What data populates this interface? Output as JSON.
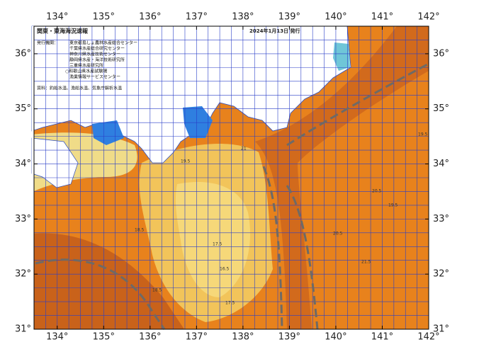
{
  "map": {
    "title": "関東・東海海況速報",
    "issued": "2024年1月13日 発行",
    "issuer_label": "発行機関：",
    "issuers": [
      "東京都島しょ農林水産総合センター",
      "千葉県水産総合研究センター",
      "神奈川県水産技術センター",
      "静岡県水産・海洋技術研究所",
      "三重県水産研究所",
      "○和歌山県水産試験場",
      "漁業情報サービスセンター"
    ],
    "source": "資料：釣船水温、漁船水温、気象庁解析水温",
    "lon_range": [
      133.5,
      142
    ],
    "lat_range": [
      31,
      36.5
    ],
    "grid_step": 0.25,
    "lon_ticks": [
      {
        "value": 134,
        "label": "134°"
      },
      {
        "value": 135,
        "label": "135°"
      },
      {
        "value": 136,
        "label": "136°"
      },
      {
        "value": 137,
        "label": "137°"
      },
      {
        "value": 138,
        "label": "138°"
      },
      {
        "value": 139,
        "label": "139°"
      },
      {
        "value": 140,
        "label": "140°"
      },
      {
        "value": 141,
        "label": "141°"
      },
      {
        "value": 142,
        "label": "142°"
      }
    ],
    "lat_ticks": [
      {
        "value": 31,
        "label": "31°"
      },
      {
        "value": 32,
        "label": "32°"
      },
      {
        "value": 33,
        "label": "33°"
      },
      {
        "value": 34,
        "label": "34°"
      },
      {
        "value": 35,
        "label": "35°"
      },
      {
        "value": 36,
        "label": "36°"
      }
    ],
    "contour_labels": [
      "18.5",
      "17.5",
      "16.5",
      "19.5",
      "21",
      "20.5",
      "19.5",
      "18.5",
      "17.5",
      "20.5",
      "21.5",
      "19.5"
    ]
  }
}
